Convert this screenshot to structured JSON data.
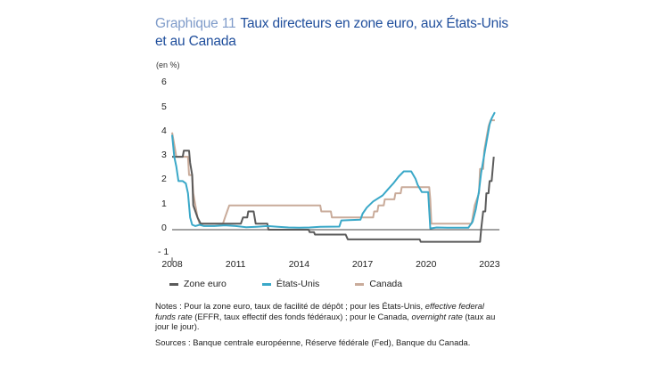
{
  "header": {
    "number": "Graphique 11",
    "title": "Taux directeurs en zone euro, aux États-Unis et au Canada",
    "unit": "(en %)"
  },
  "colors": {
    "zone_euro": "#5a5a5a",
    "etats_unis": "#3aa8c8",
    "canada": "#c9ab9a",
    "title": "#1f4e9c",
    "title_number": "#7f9bc9",
    "axis": "#444444"
  },
  "legend": {
    "zone_euro": "Zone euro",
    "etats_unis": "États-Unis",
    "canada": "Canada"
  },
  "notes": {
    "prefix": "Notes : Pour la zone euro, taux de facilité de dépôt ; pour les États-Unis, ",
    "effr_italic": "effective federal funds rate",
    "middle": " (EFFR, taux effectif des fonds fédéraux) ; pour le Canada, ",
    "overnight_italic": "overnight rate",
    "suffix": " (taux au jour le jour)."
  },
  "sources": "Sources : Banque centrale européenne, Réserve fédérale (Fed), Banque du Canada.",
  "chart_data": {
    "type": "line",
    "title": "Taux directeurs en zone euro, aux États-Unis et au Canada",
    "ylabel": "(en %)",
    "xlabel": "",
    "ylim": [
      -1,
      6
    ],
    "xlim": [
      2008,
      2023.3
    ],
    "yticks": [
      6,
      5,
      4,
      3,
      2,
      1,
      0,
      -1
    ],
    "ytick_labels": [
      "6",
      "5",
      "4",
      "3",
      "2",
      "1",
      "0",
      "- 1"
    ],
    "xticks": [
      2008,
      2011,
      2014,
      2017,
      2020,
      2023
    ],
    "grid": false,
    "legend_position": "bottom",
    "series": [
      {
        "name": "Zone euro",
        "color": "#5a5a5a",
        "points": [
          [
            2008.0,
            3.0
          ],
          [
            2008.5,
            3.0
          ],
          [
            2008.55,
            3.25
          ],
          [
            2008.8,
            3.25
          ],
          [
            2008.85,
            2.75
          ],
          [
            2008.95,
            2.25
          ],
          [
            2009.0,
            1.0
          ],
          [
            2009.2,
            0.5
          ],
          [
            2009.35,
            0.25
          ],
          [
            2011.25,
            0.25
          ],
          [
            2011.35,
            0.5
          ],
          [
            2011.55,
            0.5
          ],
          [
            2011.6,
            0.75
          ],
          [
            2011.85,
            0.75
          ],
          [
            2011.95,
            0.25
          ],
          [
            2012.5,
            0.25
          ],
          [
            2012.55,
            0.0
          ],
          [
            2014.45,
            0.0
          ],
          [
            2014.5,
            -0.1
          ],
          [
            2014.7,
            -0.1
          ],
          [
            2014.75,
            -0.2
          ],
          [
            2016.2,
            -0.2
          ],
          [
            2016.25,
            -0.3
          ],
          [
            2016.3,
            -0.4
          ],
          [
            2019.7,
            -0.4
          ],
          [
            2019.75,
            -0.5
          ],
          [
            2022.55,
            -0.5
          ],
          [
            2022.6,
            0.0
          ],
          [
            2022.7,
            0.75
          ],
          [
            2022.8,
            0.75
          ],
          [
            2022.85,
            1.5
          ],
          [
            2022.95,
            1.5
          ],
          [
            2023.0,
            2.0
          ],
          [
            2023.1,
            2.0
          ],
          [
            2023.15,
            2.5
          ],
          [
            2023.2,
            3.0
          ]
        ]
      },
      {
        "name": "États-Unis",
        "color": "#3aa8c8",
        "points": [
          [
            2008.0,
            3.9
          ],
          [
            2008.1,
            3.0
          ],
          [
            2008.2,
            2.6
          ],
          [
            2008.3,
            2.0
          ],
          [
            2008.5,
            2.0
          ],
          [
            2008.65,
            1.9
          ],
          [
            2008.75,
            1.5
          ],
          [
            2008.85,
            0.5
          ],
          [
            2008.95,
            0.2
          ],
          [
            2009.1,
            0.15
          ],
          [
            2009.3,
            0.2
          ],
          [
            2009.5,
            0.15
          ],
          [
            2010.0,
            0.15
          ],
          [
            2010.5,
            0.18
          ],
          [
            2011.0,
            0.15
          ],
          [
            2011.5,
            0.1
          ],
          [
            2012.0,
            0.12
          ],
          [
            2012.5,
            0.15
          ],
          [
            2013.0,
            0.12
          ],
          [
            2013.5,
            0.09
          ],
          [
            2014.0,
            0.08
          ],
          [
            2014.5,
            0.09
          ],
          [
            2015.0,
            0.12
          ],
          [
            2015.9,
            0.13
          ],
          [
            2016.0,
            0.38
          ],
          [
            2016.5,
            0.4
          ],
          [
            2016.9,
            0.41
          ],
          [
            2017.0,
            0.66
          ],
          [
            2017.2,
            0.91
          ],
          [
            2017.5,
            1.16
          ],
          [
            2017.95,
            1.41
          ],
          [
            2018.2,
            1.66
          ],
          [
            2018.45,
            1.9
          ],
          [
            2018.7,
            2.18
          ],
          [
            2018.95,
            2.4
          ],
          [
            2019.3,
            2.4
          ],
          [
            2019.5,
            2.1
          ],
          [
            2019.6,
            1.85
          ],
          [
            2019.8,
            1.55
          ],
          [
            2020.1,
            1.55
          ],
          [
            2020.2,
            0.05
          ],
          [
            2020.5,
            0.09
          ],
          [
            2021.0,
            0.08
          ],
          [
            2021.5,
            0.08
          ],
          [
            2022.0,
            0.08
          ],
          [
            2022.2,
            0.33
          ],
          [
            2022.35,
            0.83
          ],
          [
            2022.5,
            1.58
          ],
          [
            2022.6,
            2.33
          ],
          [
            2022.75,
            3.08
          ],
          [
            2022.9,
            3.83
          ],
          [
            2023.0,
            4.33
          ],
          [
            2023.1,
            4.58
          ],
          [
            2023.25,
            4.83
          ]
        ]
      },
      {
        "name": "Canada",
        "color": "#c9ab9a",
        "points": [
          [
            2008.0,
            4.0
          ],
          [
            2008.1,
            3.5
          ],
          [
            2008.2,
            3.0
          ],
          [
            2008.75,
            3.0
          ],
          [
            2008.8,
            2.25
          ],
          [
            2008.95,
            2.25
          ],
          [
            2009.0,
            1.5
          ],
          [
            2009.1,
            1.0
          ],
          [
            2009.2,
            0.5
          ],
          [
            2009.3,
            0.25
          ],
          [
            2010.4,
            0.25
          ],
          [
            2010.5,
            0.5
          ],
          [
            2010.6,
            0.75
          ],
          [
            2010.7,
            1.0
          ],
          [
            2015.0,
            1.0
          ],
          [
            2015.05,
            0.75
          ],
          [
            2015.5,
            0.75
          ],
          [
            2015.55,
            0.5
          ],
          [
            2017.5,
            0.5
          ],
          [
            2017.55,
            0.75
          ],
          [
            2017.7,
            0.75
          ],
          [
            2017.75,
            1.0
          ],
          [
            2018.0,
            1.0
          ],
          [
            2018.05,
            1.25
          ],
          [
            2018.5,
            1.25
          ],
          [
            2018.55,
            1.5
          ],
          [
            2018.8,
            1.5
          ],
          [
            2018.85,
            1.75
          ],
          [
            2020.15,
            1.75
          ],
          [
            2020.2,
            1.25
          ],
          [
            2020.25,
            0.25
          ],
          [
            2022.15,
            0.25
          ],
          [
            2022.2,
            0.5
          ],
          [
            2022.3,
            1.0
          ],
          [
            2022.5,
            1.5
          ],
          [
            2022.55,
            2.5
          ],
          [
            2022.7,
            2.5
          ],
          [
            2022.75,
            3.25
          ],
          [
            2022.85,
            3.75
          ],
          [
            2022.95,
            4.25
          ],
          [
            2023.05,
            4.5
          ],
          [
            2023.25,
            4.5
          ]
        ]
      }
    ]
  }
}
